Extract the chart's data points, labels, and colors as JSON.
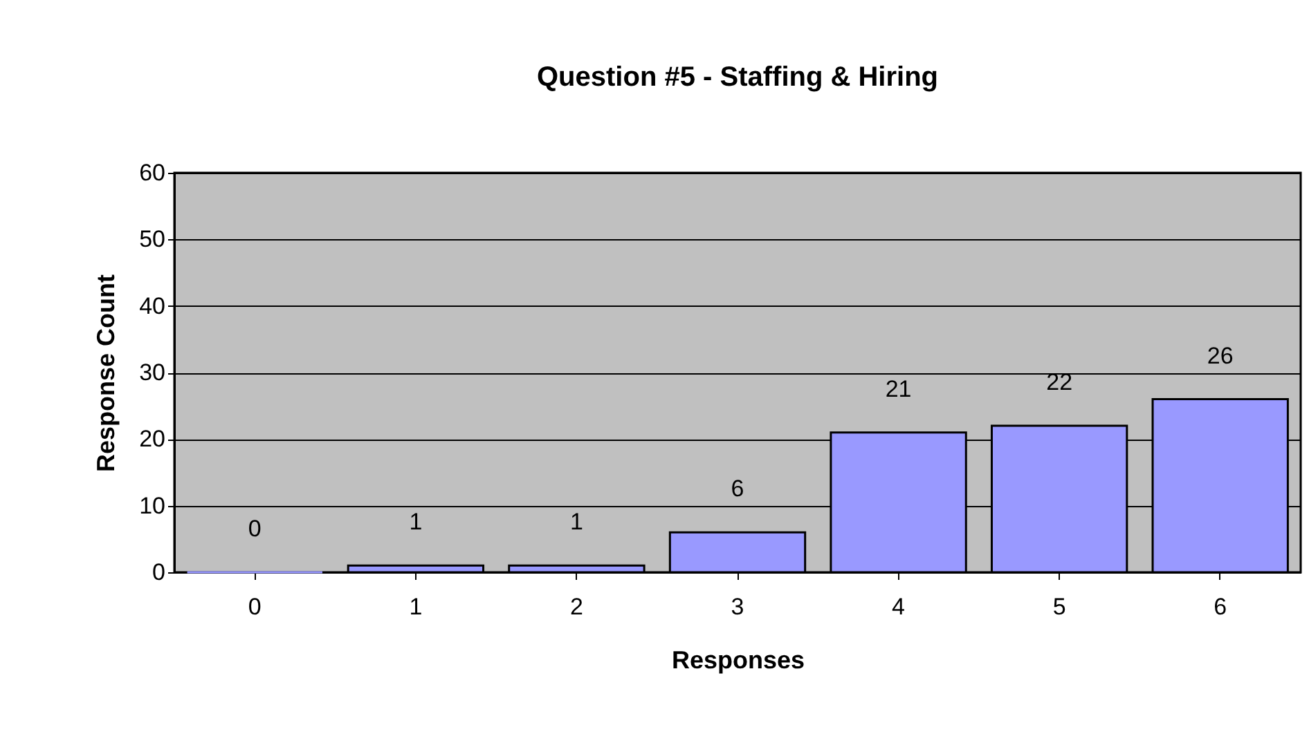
{
  "chart_data": {
    "type": "bar",
    "title": "Question #5 - Staffing & Hiring",
    "xlabel": "Responses",
    "ylabel": "Response Count",
    "categories": [
      "0",
      "1",
      "2",
      "3",
      "4",
      "5",
      "6"
    ],
    "values": [
      0,
      1,
      1,
      6,
      21,
      22,
      26
    ],
    "color": "#9999ff",
    "ylim": [
      0,
      60
    ],
    "yticks": [
      0,
      10,
      20,
      30,
      40,
      50,
      60
    ],
    "grid": "y",
    "data_labels": true
  }
}
